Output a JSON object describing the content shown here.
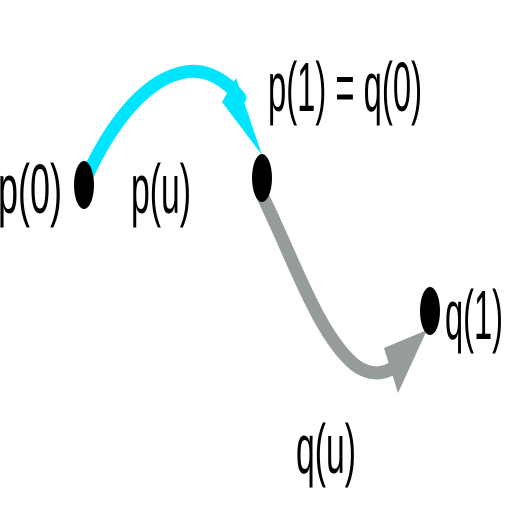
{
  "labels": {
    "p0": "p(0)",
    "pu": "p(u)",
    "p1_q0": "p(1) = q(0)",
    "q1": "q(1)",
    "qu": "q(u)"
  },
  "curves": {
    "p": {
      "color": "#00e5ff",
      "name": "p(u)"
    },
    "q": {
      "color": "#969c99",
      "name": "q(u)"
    }
  },
  "point_color": "#000000"
}
